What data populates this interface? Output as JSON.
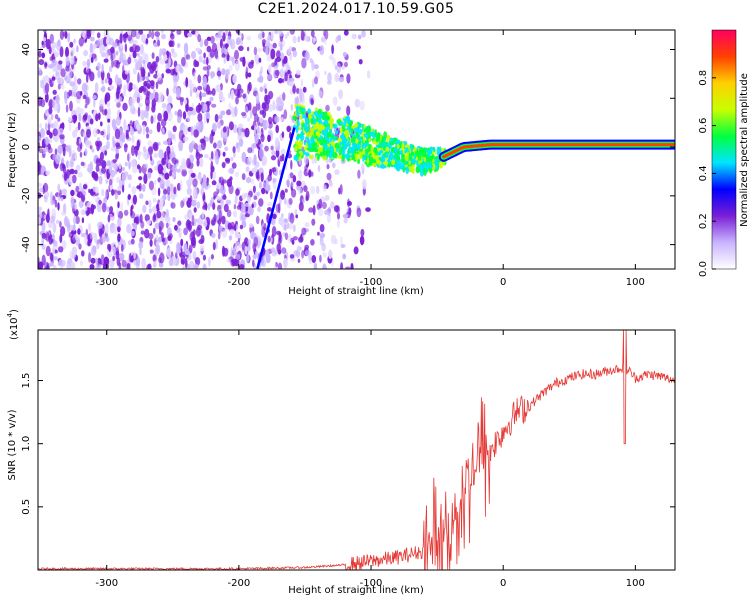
{
  "title": "C2E1.2024.017.10.59.G05",
  "colors": {
    "snr_line": "#e53935",
    "spectrogram_low": "#7a1fd6",
    "spectrogram_high": "#e8003a"
  },
  "chart_data": [
    {
      "type": "heatmap",
      "xlabel": "Height of straight line (km)",
      "ylabel": "Frequency (Hz)",
      "xlim": [
        -352,
        130
      ],
      "ylim": [
        -50,
        48
      ],
      "x_ticks": [
        -300,
        -200,
        -100,
        0,
        100
      ],
      "y_ticks": [
        -40,
        -20,
        0,
        20,
        40
      ],
      "colorbar": {
        "label": "Normalized spectral amplitude",
        "range": [
          0,
          1
        ],
        "ticks": [
          "0.0",
          "0.2",
          "0.4",
          "0.6",
          "0.8"
        ],
        "colormap": [
          "#ffffff",
          "#c9b4ff",
          "#7a1fd6",
          "#0000ff",
          "#00e5ff",
          "#00ff40",
          "#c8ff00",
          "#ffd000",
          "#ff4000",
          "#ff0060"
        ]
      },
      "ridge": {
        "description_points": [
          {
            "x": -155,
            "y": 6
          },
          {
            "x": -120,
            "y": 4
          },
          {
            "x": -100,
            "y": 0
          },
          {
            "x": -80,
            "y": -3
          },
          {
            "x": -60,
            "y": -6
          },
          {
            "x": -45,
            "y": -4
          },
          {
            "x": -30,
            "y": 0
          },
          {
            "x": -10,
            "y": 1
          },
          {
            "x": 30,
            "y": 1
          },
          {
            "x": 90,
            "y": 1
          },
          {
            "x": 130,
            "y": 1
          }
        ],
        "steep_line": [
          {
            "x": -186,
            "y": -50
          },
          {
            "x": -158,
            "y": 8
          }
        ]
      },
      "grid": false
    },
    {
      "type": "line",
      "xlabel": "Height of straight line (km)",
      "ylabel": "SNR (10 * v/v)",
      "y_multiplier": "(x10",
      "y_multiplier_exp": "4",
      "y_multiplier_close": ")",
      "xlim": [
        -352,
        130
      ],
      "ylim": [
        0,
        1.9
      ],
      "x_ticks": [
        -300,
        -200,
        -100,
        0,
        100
      ],
      "y_ticks": [
        0.5,
        1.0,
        1.5
      ],
      "series": [
        {
          "x": [
            -352,
            -300,
            -250,
            -200,
            -150,
            -120,
            -100,
            -80,
            -60,
            -50,
            -40,
            -30,
            -20,
            -10,
            0,
            10,
            20,
            30,
            40,
            50,
            60,
            70,
            80,
            90,
            95,
            100,
            110,
            120,
            130
          ],
          "y": [
            0.01,
            0.01,
            0.01,
            0.01,
            0.02,
            0.04,
            0.07,
            0.1,
            0.15,
            0.22,
            0.35,
            0.6,
            0.85,
            0.95,
            1.1,
            1.25,
            1.3,
            1.4,
            1.48,
            1.52,
            1.55,
            1.55,
            1.58,
            1.6,
            1.58,
            1.52,
            1.55,
            1.53,
            1.5
          ]
        }
      ],
      "grid": false
    }
  ]
}
